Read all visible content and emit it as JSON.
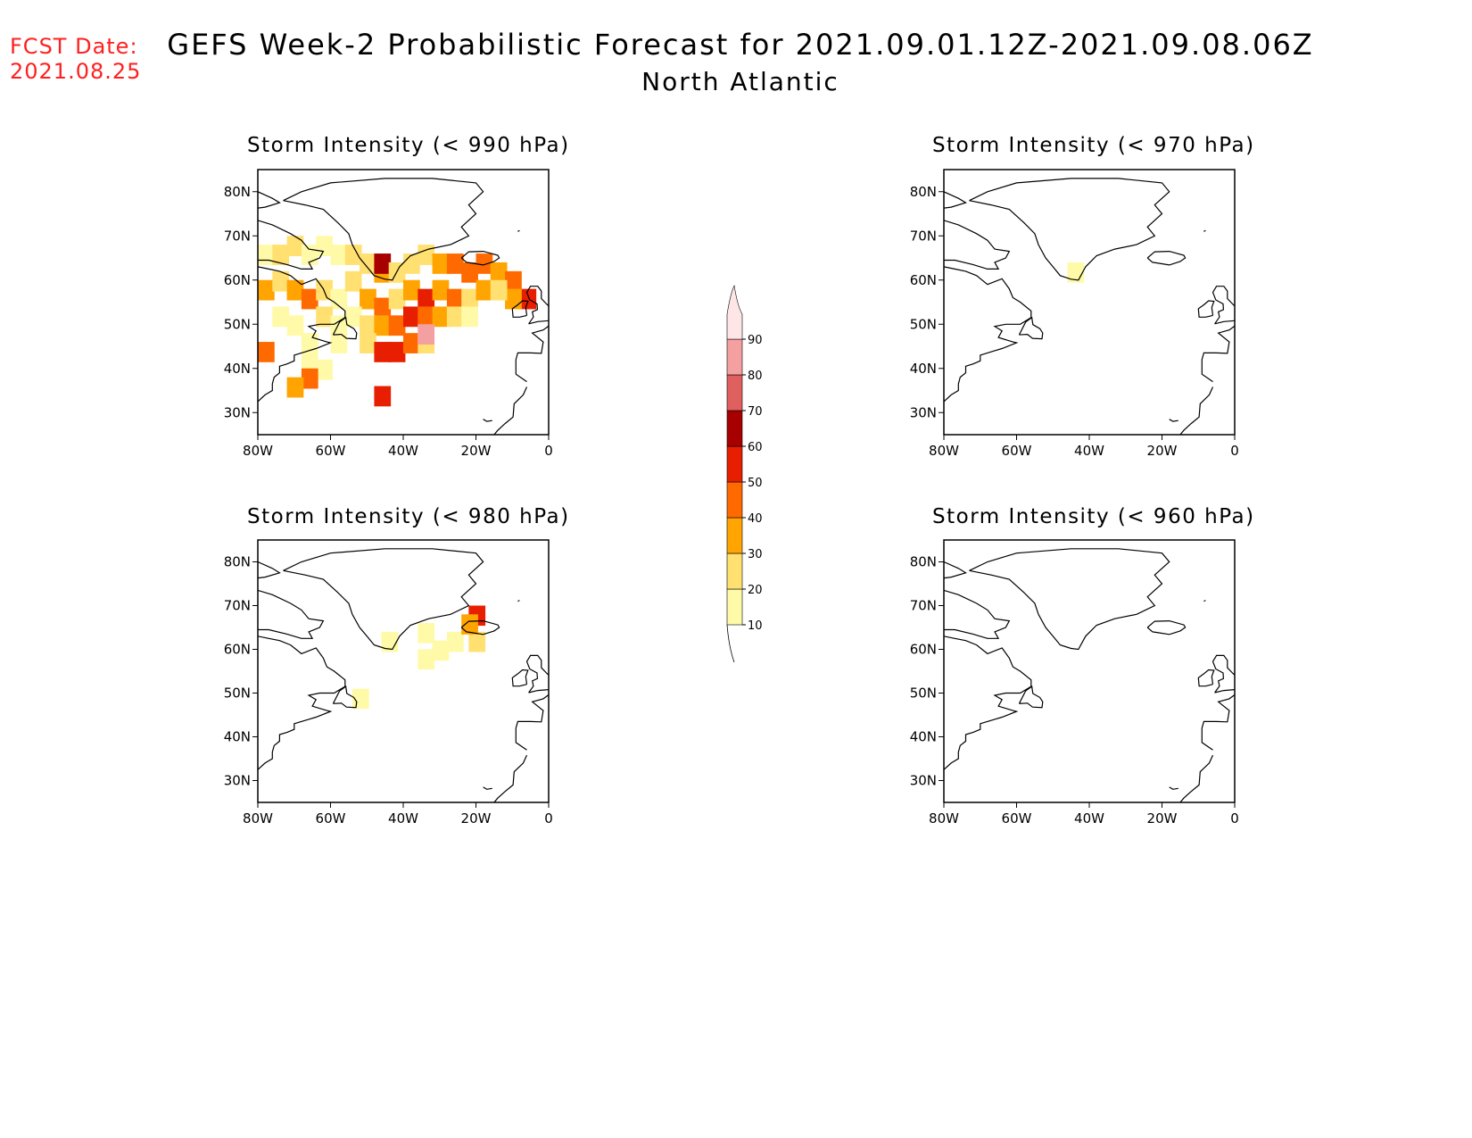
{
  "header": {
    "fcst_label": "FCST Date:",
    "fcst_date": "2021.08.25",
    "title": "GEFS Week-2 Probabilistic Forecast for 2021.09.01.12Z-2021.09.08.06Z",
    "subtitle": "North Atlantic"
  },
  "colorbar": {
    "levels": [
      10,
      20,
      30,
      40,
      50,
      60,
      70,
      80,
      90
    ],
    "labels": [
      "10",
      "20",
      "30",
      "40",
      "50",
      "60",
      "70",
      "80",
      "90"
    ],
    "colors": [
      "#fffaa8",
      "#ffe070",
      "#ffa400",
      "#ff6a00",
      "#e81e00",
      "#a80000",
      "#e06060",
      "#f4a0a0",
      "#ffe6e6"
    ]
  },
  "axes": {
    "lon_labels": [
      "80W",
      "60W",
      "40W",
      "20W",
      "0"
    ],
    "lat_labels": [
      "80N",
      "70N",
      "60N",
      "50N",
      "40N",
      "30N"
    ],
    "lon_values": [
      -80,
      -60,
      -40,
      -20,
      0
    ],
    "lat_values": [
      80,
      70,
      60,
      50,
      40,
      30
    ],
    "lon_range": [
      -80,
      0
    ],
    "lat_range": [
      25,
      85
    ]
  },
  "panels": [
    {
      "id": "p990",
      "title": "Storm Intensity (< 990 hPa)",
      "threshold_hpa": 990,
      "probability_cells": [
        {
          "lon": -78,
          "lat": 66,
          "p": 10
        },
        {
          "lon": -74,
          "lat": 66,
          "p": 20
        },
        {
          "lon": -70,
          "lat": 68,
          "p": 20
        },
        {
          "lon": -66,
          "lat": 66,
          "p": 10
        },
        {
          "lon": -62,
          "lat": 68,
          "p": 10
        },
        {
          "lon": -58,
          "lat": 66,
          "p": 10
        },
        {
          "lon": -54,
          "lat": 66,
          "p": 20
        },
        {
          "lon": -50,
          "lat": 64,
          "p": 20
        },
        {
          "lon": -46,
          "lat": 62,
          "p": 30
        },
        {
          "lon": -46,
          "lat": 64,
          "p": 60
        },
        {
          "lon": -42,
          "lat": 62,
          "p": 20
        },
        {
          "lon": -38,
          "lat": 64,
          "p": 20
        },
        {
          "lon": -34,
          "lat": 66,
          "p": 20
        },
        {
          "lon": -30,
          "lat": 64,
          "p": 30
        },
        {
          "lon": -26,
          "lat": 64,
          "p": 40
        },
        {
          "lon": -22,
          "lat": 62,
          "p": 40
        },
        {
          "lon": -18,
          "lat": 64,
          "p": 40
        },
        {
          "lon": -14,
          "lat": 62,
          "p": 30
        },
        {
          "lon": -10,
          "lat": 60,
          "p": 40
        },
        {
          "lon": -6,
          "lat": 56,
          "p": 50
        },
        {
          "lon": -10,
          "lat": 56,
          "p": 30
        },
        {
          "lon": -78,
          "lat": 58,
          "p": 30
        },
        {
          "lon": -74,
          "lat": 60,
          "p": 20
        },
        {
          "lon": -70,
          "lat": 58,
          "p": 30
        },
        {
          "lon": -66,
          "lat": 56,
          "p": 40
        },
        {
          "lon": -62,
          "lat": 58,
          "p": 20
        },
        {
          "lon": -58,
          "lat": 56,
          "p": 10
        },
        {
          "lon": -54,
          "lat": 60,
          "p": 20
        },
        {
          "lon": -50,
          "lat": 56,
          "p": 30
        },
        {
          "lon": -46,
          "lat": 54,
          "p": 40
        },
        {
          "lon": -42,
          "lat": 56,
          "p": 20
        },
        {
          "lon": -38,
          "lat": 58,
          "p": 30
        },
        {
          "lon": -34,
          "lat": 56,
          "p": 50
        },
        {
          "lon": -30,
          "lat": 58,
          "p": 30
        },
        {
          "lon": -26,
          "lat": 56,
          "p": 40
        },
        {
          "lon": -22,
          "lat": 56,
          "p": 20
        },
        {
          "lon": -18,
          "lat": 58,
          "p": 30
        },
        {
          "lon": -14,
          "lat": 58,
          "p": 20
        },
        {
          "lon": -74,
          "lat": 52,
          "p": 10
        },
        {
          "lon": -70,
          "lat": 50,
          "p": 10
        },
        {
          "lon": -62,
          "lat": 52,
          "p": 20
        },
        {
          "lon": -58,
          "lat": 50,
          "p": 10
        },
        {
          "lon": -54,
          "lat": 52,
          "p": 10
        },
        {
          "lon": -50,
          "lat": 50,
          "p": 20
        },
        {
          "lon": -46,
          "lat": 50,
          "p": 30
        },
        {
          "lon": -42,
          "lat": 50,
          "p": 40
        },
        {
          "lon": -38,
          "lat": 52,
          "p": 50
        },
        {
          "lon": -34,
          "lat": 52,
          "p": 40
        },
        {
          "lon": -30,
          "lat": 52,
          "p": 30
        },
        {
          "lon": -26,
          "lat": 52,
          "p": 20
        },
        {
          "lon": -22,
          "lat": 52,
          "p": 10
        },
        {
          "lon": -66,
          "lat": 46,
          "p": 10
        },
        {
          "lon": -58,
          "lat": 46,
          "p": 10
        },
        {
          "lon": -50,
          "lat": 46,
          "p": 20
        },
        {
          "lon": -46,
          "lat": 44,
          "p": 50
        },
        {
          "lon": -42,
          "lat": 44,
          "p": 50
        },
        {
          "lon": -38,
          "lat": 46,
          "p": 40
        },
        {
          "lon": -34,
          "lat": 46,
          "p": 20
        },
        {
          "lon": -78,
          "lat": 44,
          "p": 40
        },
        {
          "lon": -66,
          "lat": 42,
          "p": 10
        },
        {
          "lon": -62,
          "lat": 40,
          "p": 10
        },
        {
          "lon": -66,
          "lat": 38,
          "p": 40
        },
        {
          "lon": -46,
          "lat": 34,
          "p": 50
        },
        {
          "lon": -70,
          "lat": 36,
          "p": 30
        },
        {
          "lon": -34,
          "lat": 48,
          "p": 80
        }
      ]
    },
    {
      "id": "p980",
      "title": "Storm Intensity (< 980 hPa)",
      "threshold_hpa": 980,
      "probability_cells": [
        {
          "lon": -44,
          "lat": 62,
          "p": 10
        },
        {
          "lon": -34,
          "lat": 64,
          "p": 10
        },
        {
          "lon": -30,
          "lat": 60,
          "p": 10
        },
        {
          "lon": -34,
          "lat": 58,
          "p": 10
        },
        {
          "lon": -26,
          "lat": 62,
          "p": 10
        },
        {
          "lon": -20,
          "lat": 62,
          "p": 20
        },
        {
          "lon": -20,
          "lat": 68,
          "p": 50
        },
        {
          "lon": -22,
          "lat": 66,
          "p": 30
        },
        {
          "lon": -52,
          "lat": 49,
          "p": 10
        }
      ]
    },
    {
      "id": "p970",
      "title": "Storm Intensity (< 970 hPa)",
      "threshold_hpa": 970,
      "probability_cells": [
        {
          "lon": -44,
          "lat": 62,
          "p": 10
        }
      ]
    },
    {
      "id": "p960",
      "title": "Storm Intensity (< 960 hPa)",
      "threshold_hpa": 960,
      "probability_cells": []
    }
  ]
}
